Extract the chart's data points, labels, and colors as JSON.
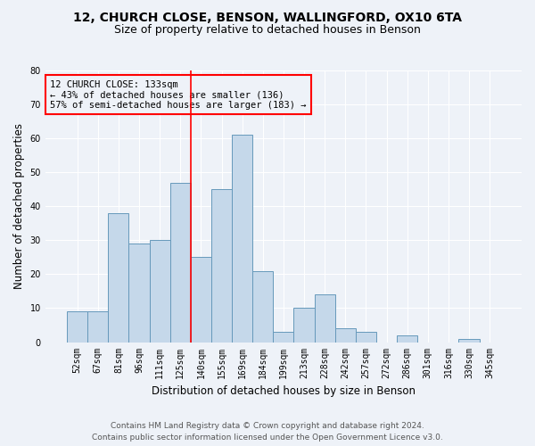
{
  "title1": "12, CHURCH CLOSE, BENSON, WALLINGFORD, OX10 6TA",
  "title2": "Size of property relative to detached houses in Benson",
  "xlabel": "Distribution of detached houses by size in Benson",
  "ylabel": "Number of detached properties",
  "categories": [
    "52sqm",
    "67sqm",
    "81sqm",
    "96sqm",
    "111sqm",
    "125sqm",
    "140sqm",
    "155sqm",
    "169sqm",
    "184sqm",
    "199sqm",
    "213sqm",
    "228sqm",
    "242sqm",
    "257sqm",
    "272sqm",
    "286sqm",
    "301sqm",
    "316sqm",
    "330sqm",
    "345sqm"
  ],
  "values": [
    9,
    9,
    38,
    29,
    30,
    47,
    25,
    45,
    61,
    21,
    3,
    10,
    14,
    4,
    3,
    0,
    2,
    0,
    0,
    1,
    0
  ],
  "bar_color": "#c5d8ea",
  "bar_edge_color": "#6699bb",
  "vline_color": "red",
  "vline_x_index": 5.5,
  "annotation_line1": "12 CHURCH CLOSE: 133sqm",
  "annotation_line2": "← 43% of detached houses are smaller (136)",
  "annotation_line3": "57% of semi-detached houses are larger (183) →",
  "annotation_box_color": "red",
  "ylim": [
    0,
    80
  ],
  "yticks": [
    0,
    10,
    20,
    30,
    40,
    50,
    60,
    70,
    80
  ],
  "footer1": "Contains HM Land Registry data © Crown copyright and database right 2024.",
  "footer2": "Contains public sector information licensed under the Open Government Licence v3.0.",
  "bg_color": "#eef2f8",
  "grid_color": "#ffffff",
  "title_fontsize": 10,
  "subtitle_fontsize": 9,
  "axis_label_fontsize": 8.5,
  "tick_fontsize": 7,
  "annotation_fontsize": 7.5,
  "footer_fontsize": 6.5
}
